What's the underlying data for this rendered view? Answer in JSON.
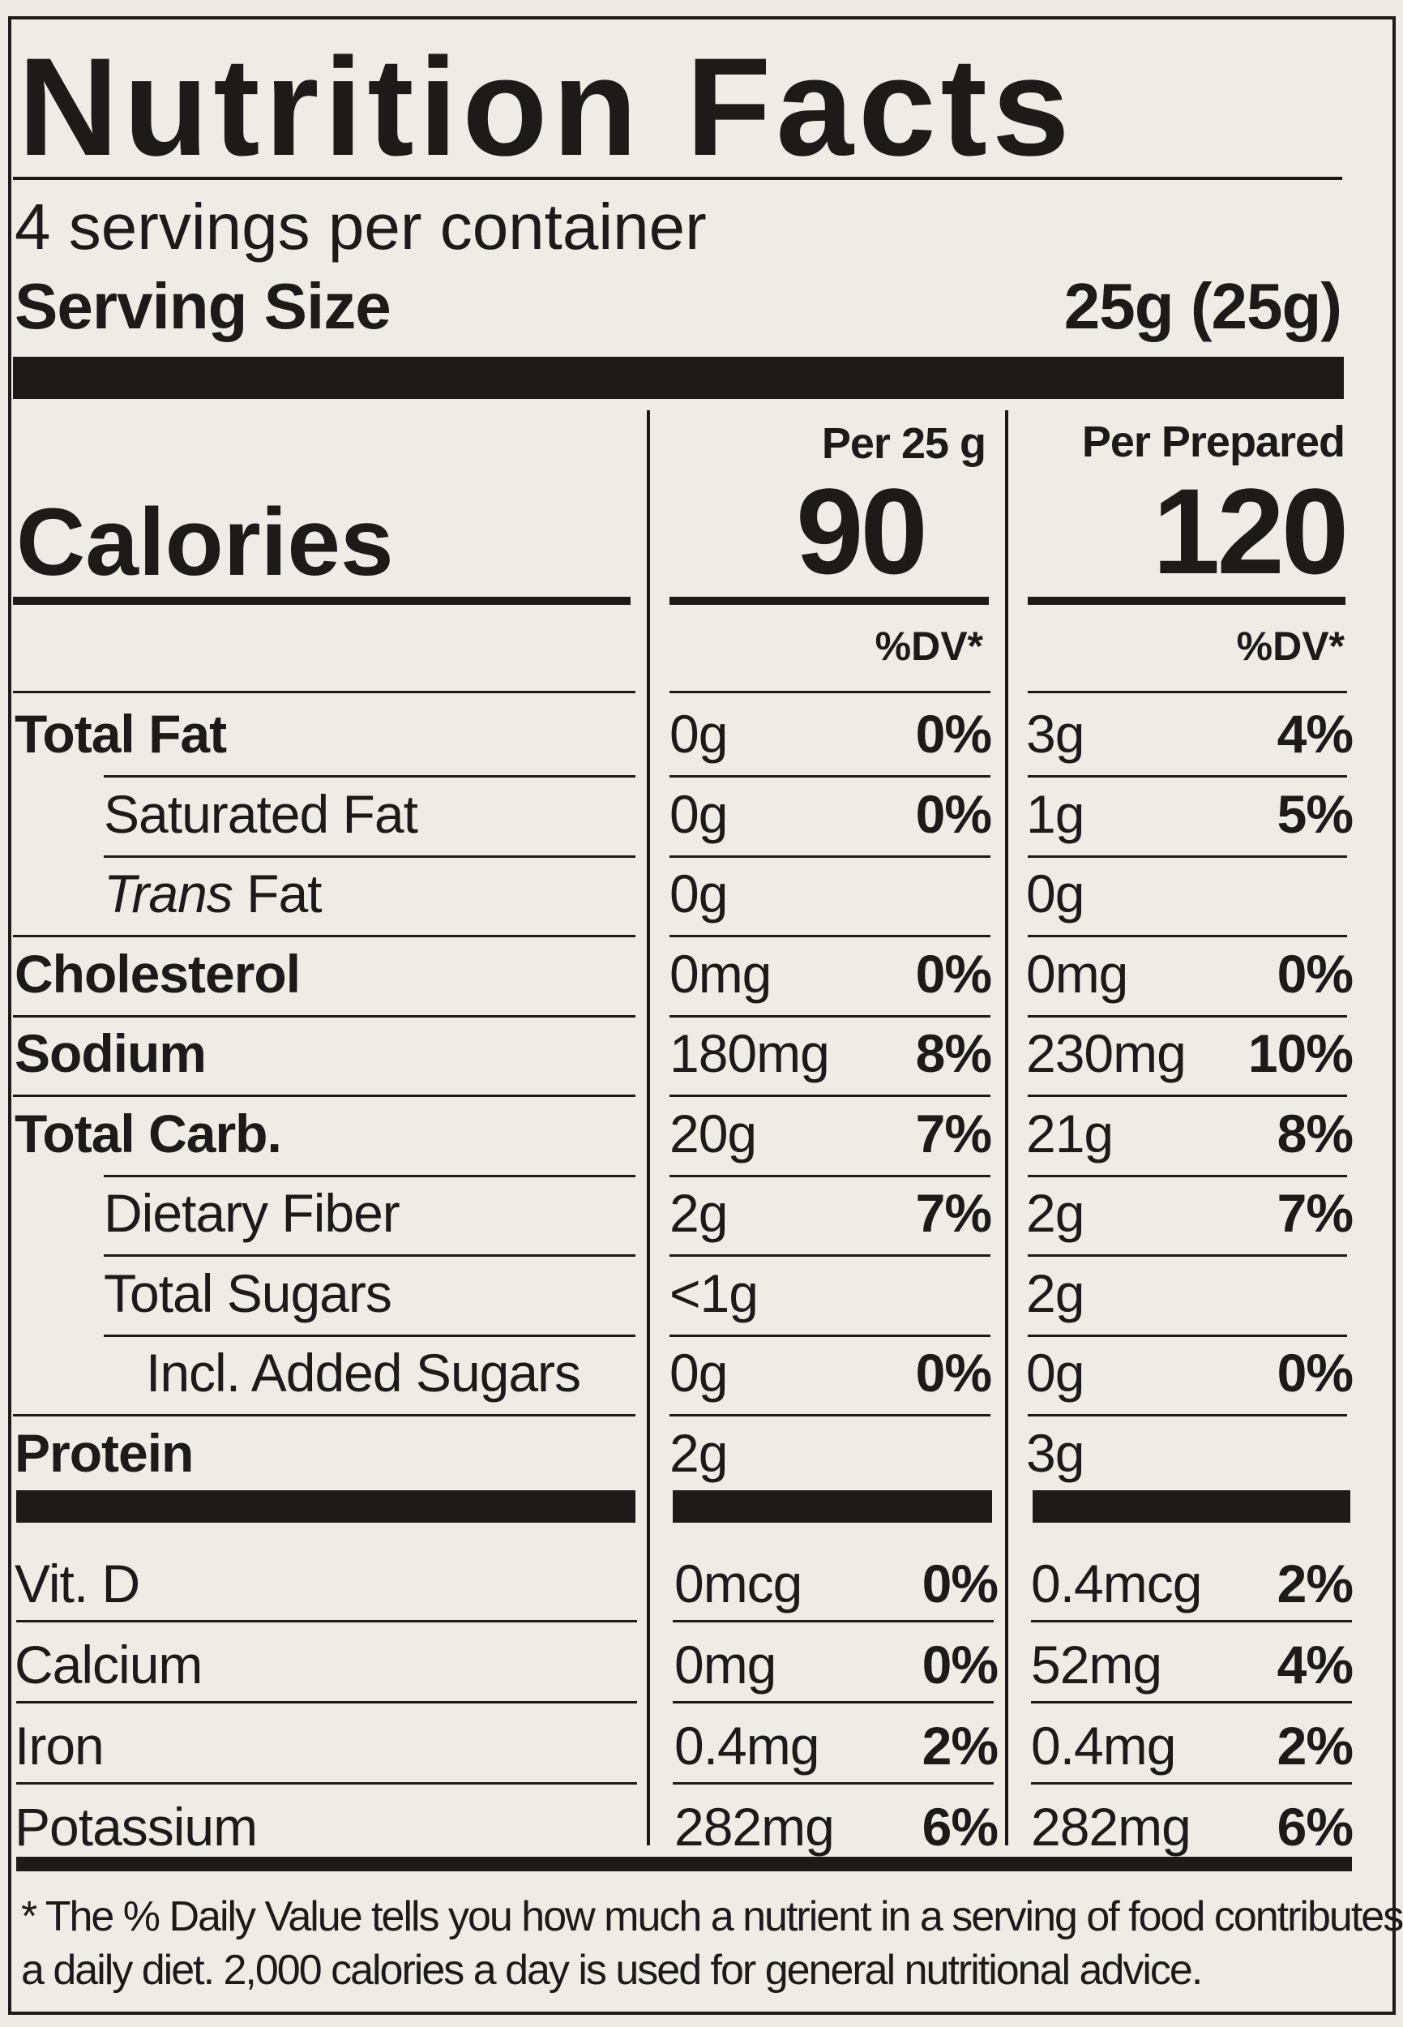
{
  "title": "Nutrition Facts",
  "servings_per_container": "4 servings per container",
  "serving_size_label": "Serving Size",
  "serving_size_value": "25g (25g)",
  "columns": [
    {
      "header": "Per 25 g",
      "calories": "90",
      "dv_header": "%DV*"
    },
    {
      "header": "Per Prepared",
      "calories": "120",
      "dv_header": "%DV*"
    }
  ],
  "calories_label": "Calories",
  "nutrients": [
    {
      "name": "Total Fat",
      "style": "bold",
      "v1": "0g",
      "p1": "0%",
      "v2": "3g",
      "p2": "4%"
    },
    {
      "name": "Saturated Fat",
      "style": "indent",
      "v1": "0g",
      "p1": "0%",
      "v2": "1g",
      "p2": "5%"
    },
    {
      "name_italic": "Trans",
      "name_rest": " Fat",
      "style": "indent",
      "v1": "0g",
      "p1": "",
      "v2": "0g",
      "p2": ""
    },
    {
      "name": "Cholesterol",
      "style": "bold",
      "v1": "0mg",
      "p1": "0%",
      "v2": "0mg",
      "p2": "0%"
    },
    {
      "name": "Sodium",
      "style": "bold",
      "v1": "180mg",
      "p1": "8%",
      "v2": "230mg",
      "p2": "10%"
    },
    {
      "name": "Total Carb.",
      "style": "bold",
      "v1": "20g",
      "p1": "7%",
      "v2": "21g",
      "p2": "8%"
    },
    {
      "name": "Dietary Fiber",
      "style": "indent",
      "v1": "2g",
      "p1": "7%",
      "v2": "2g",
      "p2": "7%"
    },
    {
      "name": "Total Sugars",
      "style": "indent",
      "v1": "<1g",
      "p1": "",
      "v2": "2g",
      "p2": ""
    },
    {
      "name": "Incl. Added Sugars",
      "style": "indent2",
      "v1": "0g",
      "p1": "0%",
      "v2": "0g",
      "p2": "0%"
    },
    {
      "name": "Protein",
      "style": "bold",
      "v1": "2g",
      "p1": "",
      "v2": "3g",
      "p2": ""
    }
  ],
  "vitamins": [
    {
      "name": "Vit. D",
      "v1": "0mcg",
      "p1": "0%",
      "v2": "0.4mcg",
      "p2": "2%"
    },
    {
      "name": "Calcium",
      "v1": "0mg",
      "p1": "0%",
      "v2": "52mg",
      "p2": "4%"
    },
    {
      "name": "Iron",
      "v1": "0.4mg",
      "p1": "2%",
      "v2": "0.4mg",
      "p2": "2%"
    },
    {
      "name": "Potassium",
      "v1": "282mg",
      "p1": "6%",
      "v2": "282mg",
      "p2": "6%"
    }
  ],
  "footnote_line1": "* The % Daily Value tells you how much a nutrient in  a serving of food contributes to",
  "footnote_line2": "a daily diet. 2,000 calories a day is used for general nutritional advice."
}
